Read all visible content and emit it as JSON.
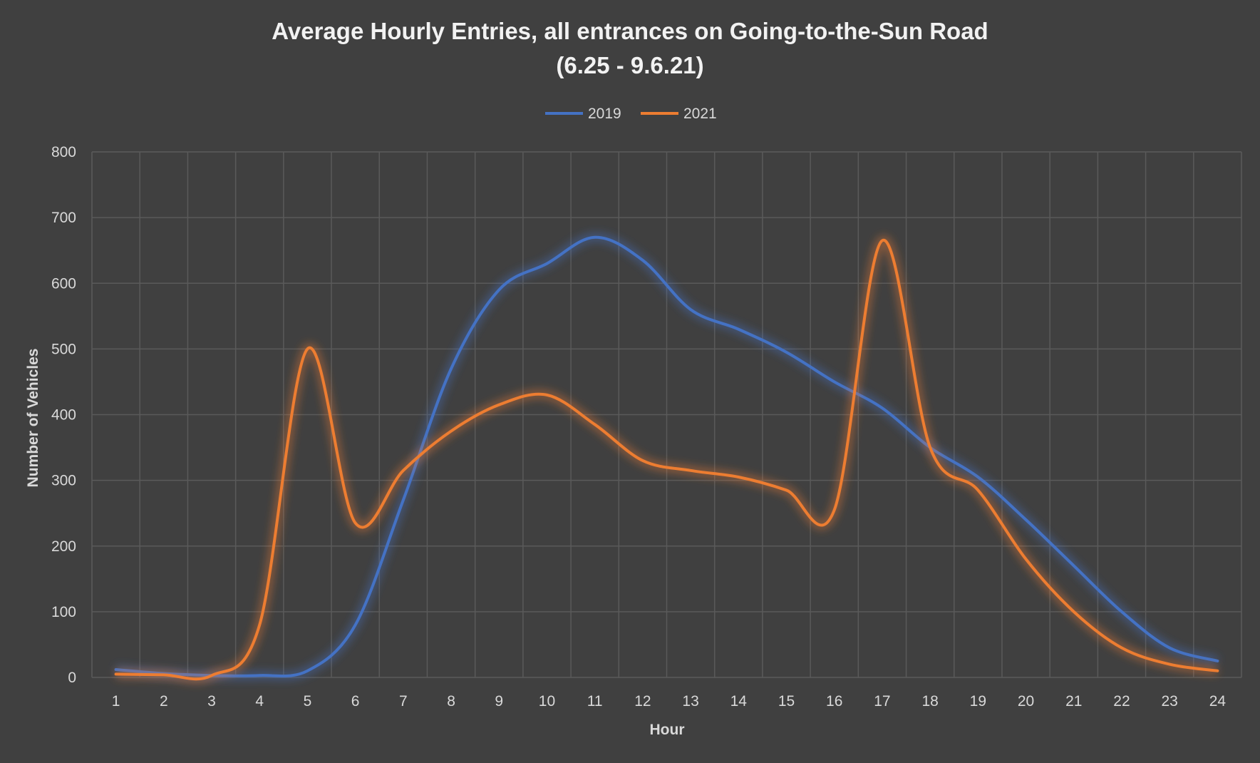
{
  "chart_data": {
    "type": "line",
    "title": "Average Hourly Entries, all entrances on Going-to-the-Sun Road",
    "subtitle": "(6.25 - 9.6.21)",
    "xlabel": "Hour",
    "ylabel": "Number of Vehicles",
    "categories": [
      "1",
      "2",
      "3",
      "4",
      "5",
      "6",
      "7",
      "8",
      "9",
      "10",
      "11",
      "12",
      "13",
      "14",
      "15",
      "16",
      "17",
      "18",
      "19",
      "20",
      "21",
      "22",
      "23",
      "24"
    ],
    "ylim": [
      0,
      800
    ],
    "yticks": [
      0,
      100,
      200,
      300,
      400,
      500,
      600,
      700,
      800
    ],
    "grid": true,
    "legend_position": "top",
    "series": [
      {
        "name": "2019",
        "color": "#4472c4",
        "values": [
          12,
          6,
          3,
          3,
          10,
          80,
          270,
          470,
          590,
          630,
          670,
          635,
          560,
          530,
          495,
          450,
          410,
          350,
          305,
          240,
          170,
          100,
          45,
          25
        ]
      },
      {
        "name": "2021",
        "color": "#ed7d31",
        "values": [
          5,
          4,
          3,
          80,
          500,
          235,
          315,
          375,
          415,
          430,
          385,
          330,
          315,
          305,
          285,
          255,
          665,
          350,
          285,
          180,
          100,
          45,
          20,
          10
        ]
      }
    ]
  }
}
